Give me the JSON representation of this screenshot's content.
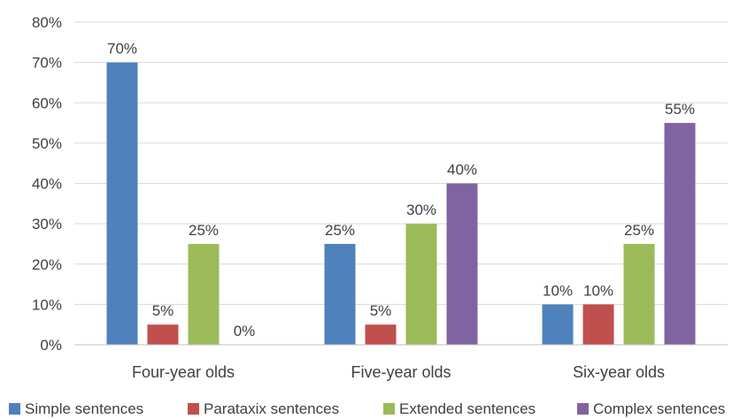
{
  "chart_data": {
    "type": "bar",
    "categories": [
      "Four-year olds",
      "Five-year olds",
      "Six-year olds"
    ],
    "series": [
      {
        "name": "Simple sentences",
        "color": "#4F81BD",
        "values": [
          70,
          25,
          10
        ],
        "labels": [
          "70%",
          "25%",
          "10%"
        ]
      },
      {
        "name": "Parataxix sentences",
        "color": "#C0504D",
        "values": [
          5,
          5,
          10
        ],
        "labels": [
          "5%",
          "5%",
          "10%"
        ]
      },
      {
        "name": "Extended sentences",
        "color": "#9BBB59",
        "values": [
          25,
          30,
          25
        ],
        "labels": [
          "25%",
          "30%",
          "25%"
        ]
      },
      {
        "name": "Complex sentences",
        "color": "#8064A2",
        "values": [
          0,
          40,
          55
        ],
        "labels": [
          "0%",
          "40%",
          "55%"
        ]
      }
    ],
    "y_ticks": [
      {
        "value": 0,
        "label": "0%"
      },
      {
        "value": 10,
        "label": "10%"
      },
      {
        "value": 20,
        "label": "20%"
      },
      {
        "value": 30,
        "label": "30%"
      },
      {
        "value": 40,
        "label": "40%"
      },
      {
        "value": 50,
        "label": "50%"
      },
      {
        "value": 60,
        "label": "60%"
      },
      {
        "value": 70,
        "label": "70%"
      },
      {
        "value": 80,
        "label": "80%"
      }
    ],
    "ylim": [
      0,
      80
    ],
    "grid": true,
    "legend_position": "bottom",
    "title": "",
    "xlabel": "",
    "ylabel": ""
  }
}
